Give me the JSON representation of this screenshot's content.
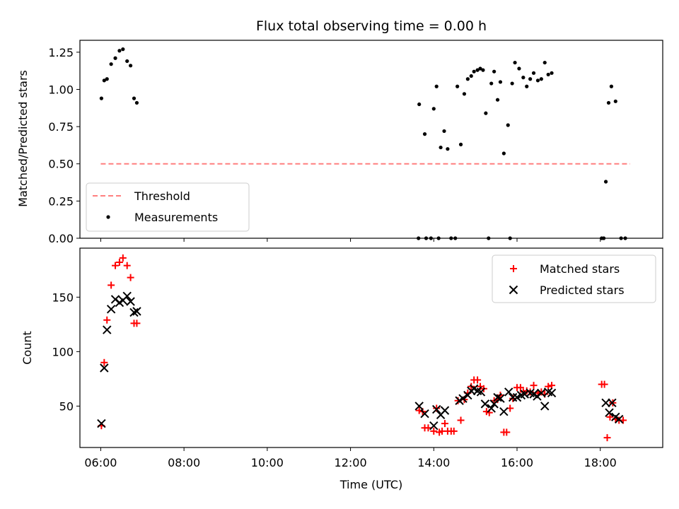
{
  "chart_data": [
    {
      "type": "scatter",
      "title": "Flux total observing time = 0.00 h",
      "xlabel": "",
      "ylabel": "Matched/Predicted stars",
      "xlim": [
        "05:30",
        "19:30"
      ],
      "ylim": [
        0,
        1.33
      ],
      "yticks": [
        "0.00",
        "0.25",
        "0.50",
        "0.75",
        "1.00",
        "1.25"
      ],
      "legend": {
        "position": "lower-left",
        "entries": [
          "Threshold",
          "Measurements"
        ]
      },
      "threshold": {
        "name": "Threshold",
        "value": 0.5,
        "x_start": "06:00",
        "x_end": "18:43",
        "color": "#ff7f7f"
      },
      "series": [
        {
          "name": "Measurements",
          "color": "#000000",
          "points": [
            [
              "06:01",
              0.94
            ],
            [
              "06:05",
              1.06
            ],
            [
              "06:09",
              1.07
            ],
            [
              "06:15",
              1.17
            ],
            [
              "06:21",
              1.21
            ],
            [
              "06:27",
              1.26
            ],
            [
              "06:32",
              1.27
            ],
            [
              "06:38",
              1.19
            ],
            [
              "06:43",
              1.16
            ],
            [
              "06:48",
              0.94
            ],
            [
              "06:52",
              0.91
            ],
            [
              "13:39",
              0.9
            ],
            [
              "13:47",
              0.7
            ],
            [
              "13:38",
              0.0
            ],
            [
              "13:49",
              0.0
            ],
            [
              "13:56",
              0.0
            ],
            [
              "14:00",
              0.87
            ],
            [
              "14:04",
              1.02
            ],
            [
              "14:07",
              0.0
            ],
            [
              "14:10",
              0.61
            ],
            [
              "14:15",
              0.72
            ],
            [
              "14:20",
              0.6
            ],
            [
              "14:25",
              0.0
            ],
            [
              "14:31",
              0.0
            ],
            [
              "14:34",
              1.02
            ],
            [
              "14:39",
              0.63
            ],
            [
              "14:44",
              0.97
            ],
            [
              "14:49",
              1.07
            ],
            [
              "14:54",
              1.09
            ],
            [
              "14:58",
              1.12
            ],
            [
              "15:03",
              1.13
            ],
            [
              "15:07",
              1.14
            ],
            [
              "15:11",
              1.13
            ],
            [
              "15:15",
              0.84
            ],
            [
              "15:23",
              1.04
            ],
            [
              "15:27",
              1.12
            ],
            [
              "15:32",
              0.93
            ],
            [
              "15:36",
              1.05
            ],
            [
              "15:41",
              0.57
            ],
            [
              "15:47",
              0.76
            ],
            [
              "15:53",
              1.04
            ],
            [
              "15:57",
              1.18
            ],
            [
              "16:03",
              1.14
            ],
            [
              "16:09",
              1.08
            ],
            [
              "16:14",
              1.02
            ],
            [
              "16:19",
              1.07
            ],
            [
              "16:24",
              1.11
            ],
            [
              "16:30",
              1.06
            ],
            [
              "16:35",
              1.07
            ],
            [
              "16:40",
              1.18
            ],
            [
              "16:45",
              1.1
            ],
            [
              "16:50",
              1.11
            ],
            [
              "15:19",
              0.0
            ],
            [
              "15:50",
              0.0
            ],
            [
              "18:02",
              0.0
            ],
            [
              "18:05",
              0.0
            ],
            [
              "18:08",
              0.38
            ],
            [
              "18:12",
              0.91
            ],
            [
              "18:16",
              1.02
            ],
            [
              "18:22",
              0.92
            ],
            [
              "18:30",
              0.0
            ],
            [
              "18:36",
              0.0
            ]
          ]
        }
      ]
    },
    {
      "type": "scatter",
      "title": "",
      "xlabel": "Time (UTC)",
      "ylabel": "Count",
      "xlim": [
        "05:30",
        "19:30"
      ],
      "ylim": [
        12,
        195
      ],
      "xticks": [
        "06:00",
        "08:00",
        "10:00",
        "12:00",
        "14:00",
        "16:00",
        "18:00"
      ],
      "yticks": [
        "50",
        "100",
        "150"
      ],
      "legend": {
        "position": "top-right",
        "entries": [
          "Matched stars",
          "Predicted stars"
        ]
      },
      "series": [
        {
          "name": "Matched stars",
          "marker": "+",
          "color": "#ff0000",
          "points": [
            [
              "06:01",
              32
            ],
            [
              "06:05",
              90
            ],
            [
              "06:09",
              129
            ],
            [
              "06:15",
              161
            ],
            [
              "06:21",
              179
            ],
            [
              "06:27",
              182
            ],
            [
              "06:32",
              186
            ],
            [
              "06:38",
              179
            ],
            [
              "06:43",
              168
            ],
            [
              "06:48",
              126
            ],
            [
              "06:52",
              126
            ],
            [
              "13:39",
              46
            ],
            [
              "13:44",
              45
            ],
            [
              "13:47",
              30
            ],
            [
              "13:52",
              30
            ],
            [
              "14:00",
              27
            ],
            [
              "14:04",
              48
            ],
            [
              "14:08",
              26
            ],
            [
              "14:12",
              27
            ],
            [
              "14:16",
              34
            ],
            [
              "14:20",
              27
            ],
            [
              "14:25",
              27
            ],
            [
              "14:29",
              27
            ],
            [
              "14:35",
              55
            ],
            [
              "14:39",
              37
            ],
            [
              "14:44",
              56
            ],
            [
              "14:49",
              62
            ],
            [
              "14:54",
              68
            ],
            [
              "14:58",
              74
            ],
            [
              "15:03",
              74
            ],
            [
              "15:07",
              68
            ],
            [
              "15:12",
              66
            ],
            [
              "15:16",
              45
            ],
            [
              "15:20",
              44
            ],
            [
              "15:27",
              55
            ],
            [
              "15:32",
              56
            ],
            [
              "15:36",
              60
            ],
            [
              "15:41",
              26
            ],
            [
              "15:45",
              26
            ],
            [
              "15:50",
              48
            ],
            [
              "15:54",
              57
            ],
            [
              "16:00",
              67
            ],
            [
              "16:05",
              67
            ],
            [
              "16:09",
              63
            ],
            [
              "16:14",
              64
            ],
            [
              "16:19",
              63
            ],
            [
              "16:24",
              69
            ],
            [
              "16:30",
              62
            ],
            [
              "16:35",
              63
            ],
            [
              "16:40",
              61
            ],
            [
              "16:45",
              68
            ],
            [
              "16:50",
              69
            ],
            [
              "18:02",
              70
            ],
            [
              "18:06",
              70
            ],
            [
              "18:10",
              21
            ],
            [
              "18:14",
              40
            ],
            [
              "18:18",
              53
            ],
            [
              "18:22",
              38
            ],
            [
              "18:27",
              37
            ],
            [
              "18:33",
              37
            ]
          ]
        },
        {
          "name": "Predicted stars",
          "marker": "x",
          "color": "#000000",
          "points": [
            [
              "06:01",
              34
            ],
            [
              "06:05",
              85
            ],
            [
              "06:09",
              120
            ],
            [
              "06:15",
              139
            ],
            [
              "06:21",
              148
            ],
            [
              "06:27",
              145
            ],
            [
              "06:32",
              147
            ],
            [
              "06:38",
              151
            ],
            [
              "06:43",
              146
            ],
            [
              "06:48",
              136
            ],
            [
              "06:52",
              137
            ],
            [
              "13:39",
              50
            ],
            [
              "13:47",
              43
            ],
            [
              "14:00",
              32
            ],
            [
              "14:04",
              47
            ],
            [
              "14:10",
              42
            ],
            [
              "14:16",
              46
            ],
            [
              "14:37",
              55
            ],
            [
              "14:42",
              57
            ],
            [
              "14:49",
              60
            ],
            [
              "14:54",
              64
            ],
            [
              "14:58",
              66
            ],
            [
              "15:03",
              64
            ],
            [
              "15:08",
              63
            ],
            [
              "15:14",
              52
            ],
            [
              "15:23",
              48
            ],
            [
              "15:27",
              52
            ],
            [
              "15:32",
              58
            ],
            [
              "15:36",
              57
            ],
            [
              "15:41",
              45
            ],
            [
              "15:48",
              63
            ],
            [
              "15:54",
              58
            ],
            [
              "16:00",
              58
            ],
            [
              "16:06",
              60
            ],
            [
              "16:11",
              61
            ],
            [
              "16:19",
              62
            ],
            [
              "16:24",
              61
            ],
            [
              "16:29",
              59
            ],
            [
              "16:35",
              62
            ],
            [
              "16:40",
              50
            ],
            [
              "16:45",
              63
            ],
            [
              "16:50",
              62
            ],
            [
              "18:08",
              53
            ],
            [
              "18:13",
              44
            ],
            [
              "18:17",
              53
            ],
            [
              "18:22",
              40
            ],
            [
              "18:27",
              38
            ]
          ]
        }
      ]
    }
  ]
}
